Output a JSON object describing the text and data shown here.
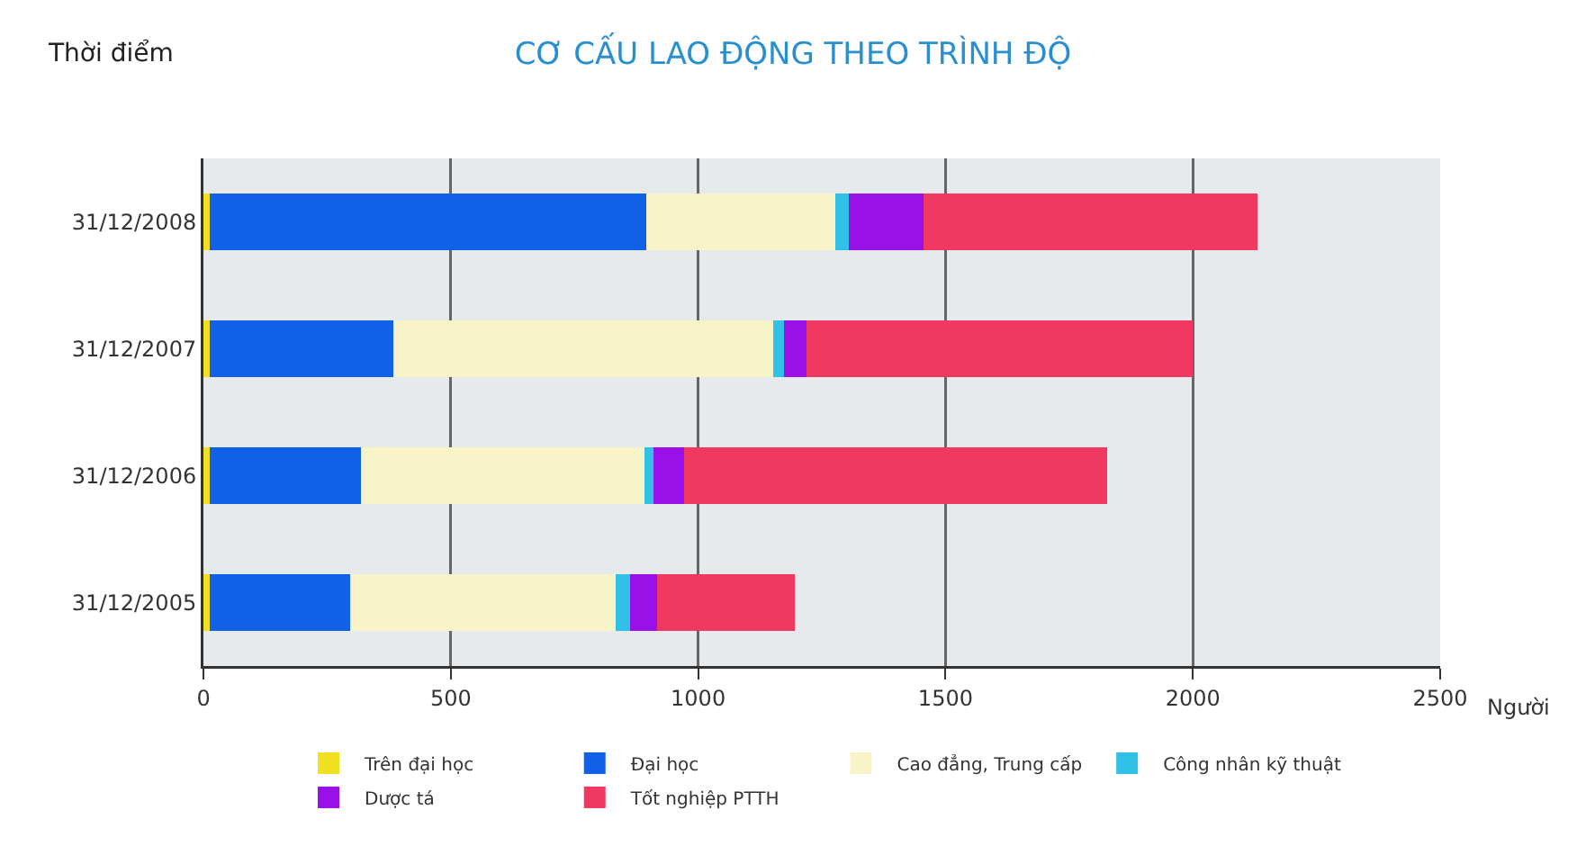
{
  "chart_data": {
    "type": "bar",
    "orientation": "horizontal",
    "stacked": true,
    "title": "CƠ CẤU LAO ĐỘNG THEO TRÌNH ĐỘ",
    "ylabel": "Thời điểm",
    "xlabel": "Người",
    "categories": [
      "31/12/2008",
      "31/12/2007",
      "31/12/2006",
      "31/12/2005"
    ],
    "series": [
      {
        "name": "Trên đại học",
        "color": "#f0e020",
        "values": [
          12,
          12,
          12,
          12
        ]
      },
      {
        "name": "Đại học",
        "color": "#1060e8",
        "values": [
          883,
          372,
          306,
          284
        ]
      },
      {
        "name": "Cao đẳng, Trung cấp",
        "color": "#f8f4c8",
        "values": [
          382,
          767,
          573,
          537
        ]
      },
      {
        "name": "Công nhân kỹ thuật",
        "color": "#30c0e8",
        "values": [
          28,
          22,
          18,
          30
        ]
      },
      {
        "name": "Dược tá",
        "color": "#9a10e8",
        "values": [
          150,
          46,
          62,
          54
        ]
      },
      {
        "name": "Tốt nghiệp PTTH",
        "color": "#f03860",
        "values": [
          675,
          781,
          855,
          279
        ]
      }
    ],
    "xlim": [
      0,
      2500
    ],
    "xticks": [
      0,
      500,
      1000,
      1500,
      2000,
      2500
    ],
    "grid": "x",
    "legend": "bottom"
  }
}
